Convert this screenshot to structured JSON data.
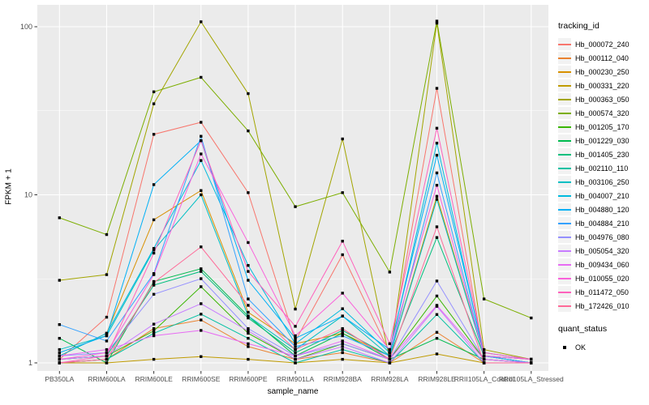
{
  "chart_data": {
    "type": "line",
    "title": "",
    "xlabel": "sample_name",
    "ylabel": "FPKM + 1",
    "y_scale": "log10",
    "y_ticks": [
      1,
      10,
      100
    ],
    "y_minor_breaks": [
      3.1623,
      31.623
    ],
    "y_range": [
      0.9,
      135
    ],
    "grid": "on",
    "legend_position": "right",
    "legend_title": "tracking_id",
    "point_legend": {
      "title": "quant_status",
      "label": "OK"
    },
    "colors": {
      "panel_bg": "#EBEBEB",
      "grid": "#FFFFFF",
      "axis_text": "#4D4D4D",
      "axis_title": "#000000",
      "point": "#000000",
      "legend_key_bg": "#F2F2F2"
    },
    "categories": [
      "PB350LA",
      "RRIM600LA",
      "RRIM600LE",
      "RRIM600SE",
      "RRIM600PE",
      "RRIM901LA",
      "RRIM928BA",
      "RRIM928LA",
      "RRIM928LE",
      "RRII105LA_Control",
      "RRII105LA_Stressed"
    ],
    "series": [
      {
        "name": "Hb_000072_240",
        "color": "#F8766D",
        "values": [
          1.05,
          1.87,
          22.9,
          27.0,
          10.3,
          1.35,
          4.4,
          1.15,
          43.0,
          1.1,
          1.05
        ]
      },
      {
        "name": "Hb_000112_040",
        "color": "#EA8331",
        "values": [
          1.0,
          1.05,
          1.6,
          1.8,
          1.25,
          1.05,
          1.15,
          1.0,
          1.52,
          1.0,
          1.0
        ]
      },
      {
        "name": "Hb_000230_250",
        "color": "#D89000",
        "values": [
          1.1,
          1.5,
          7.1,
          10.6,
          2.0,
          1.3,
          1.5,
          1.1,
          9.8,
          1.1,
          1.0
        ]
      },
      {
        "name": "Hb_000331_220",
        "color": "#C09B00",
        "values": [
          1.0,
          1.0,
          1.05,
          1.09,
          1.05,
          1.0,
          1.05,
          1.0,
          1.13,
          1.0,
          1.0
        ]
      },
      {
        "name": "Hb_000363_050",
        "color": "#A3A500",
        "values": [
          3.1,
          3.35,
          34.8,
          107.0,
          40.0,
          2.09,
          21.5,
          1.05,
          105.0,
          1.2,
          1.05
        ]
      },
      {
        "name": "Hb_000574_320",
        "color": "#7CAE00",
        "values": [
          7.3,
          5.8,
          41.0,
          50.0,
          24.0,
          8.5,
          10.3,
          3.47,
          108.0,
          2.4,
          1.85
        ]
      },
      {
        "name": "Hb_001205_170",
        "color": "#39B600",
        "values": [
          1.05,
          1.1,
          1.55,
          2.84,
          1.5,
          1.05,
          1.3,
          1.05,
          2.5,
          1.05,
          1.0
        ]
      },
      {
        "name": "Hb_001229_030",
        "color": "#00BB4E",
        "values": [
          1.4,
          1.0,
          3.05,
          3.63,
          1.9,
          1.1,
          1.5,
          1.05,
          1.4,
          1.05,
          1.0
        ]
      },
      {
        "name": "Hb_001405_230",
        "color": "#00BF7D",
        "values": [
          1.05,
          1.1,
          2.9,
          3.5,
          1.85,
          1.15,
          1.56,
          1.1,
          5.57,
          1.1,
          1.0
        ]
      },
      {
        "name": "Hb_002110_110",
        "color": "#00C1A3",
        "values": [
          1.0,
          1.05,
          1.5,
          1.95,
          1.4,
          1.0,
          1.2,
          1.0,
          1.94,
          1.0,
          1.0
        ]
      },
      {
        "name": "Hb_003106_250",
        "color": "#00BFC4",
        "values": [
          1.2,
          1.45,
          4.7,
          10.0,
          1.9,
          1.2,
          1.9,
          1.1,
          9.4,
          1.1,
          1.0
        ]
      },
      {
        "name": "Hb_004007_210",
        "color": "#00BADE",
        "values": [
          1.1,
          1.5,
          4.8,
          16.0,
          3.8,
          1.3,
          2.1,
          1.15,
          20.3,
          1.1,
          1.05
        ]
      },
      {
        "name": "Hb_004880_120",
        "color": "#00B0F6",
        "values": [
          1.15,
          1.45,
          11.5,
          21.0,
          3.1,
          1.4,
          1.9,
          1.2,
          17.2,
          1.15,
          1.05
        ]
      },
      {
        "name": "Hb_004884_210",
        "color": "#35A2FF",
        "values": [
          1.69,
          1.35,
          3.4,
          22.3,
          2.4,
          1.25,
          1.45,
          1.1,
          13.5,
          1.1,
          1.0
        ]
      },
      {
        "name": "Hb_004976_080",
        "color": "#9590FF",
        "values": [
          1.1,
          1.15,
          2.56,
          3.17,
          1.6,
          1.1,
          1.3,
          1.05,
          3.07,
          1.05,
          1.0
        ]
      },
      {
        "name": "Hb_005054_320",
        "color": "#C77CFF",
        "values": [
          1.05,
          1.1,
          1.7,
          2.25,
          1.55,
          1.05,
          1.25,
          1.0,
          2.17,
          1.0,
          1.0
        ]
      },
      {
        "name": "Hb_009434_060",
        "color": "#E76BF3",
        "values": [
          1.1,
          1.2,
          1.45,
          1.56,
          1.3,
          1.1,
          1.35,
          1.05,
          2.2,
          1.05,
          1.0
        ]
      },
      {
        "name": "Hb_010055_020",
        "color": "#FA62DB",
        "values": [
          1.05,
          1.15,
          3.35,
          17.5,
          5.2,
          1.45,
          2.6,
          1.2,
          11.4,
          1.1,
          1.05
        ]
      },
      {
        "name": "Hb_011472_050",
        "color": "#FF62BC",
        "values": [
          1.0,
          1.1,
          4.5,
          21.0,
          3.5,
          1.65,
          5.3,
          1.3,
          24.9,
          1.15,
          1.05
        ]
      },
      {
        "name": "Hb_172426_010",
        "color": "#FF6A98",
        "values": [
          1.0,
          1.05,
          3.0,
          4.9,
          2.2,
          1.2,
          1.6,
          1.05,
          6.45,
          1.0,
          1.0
        ]
      }
    ]
  }
}
